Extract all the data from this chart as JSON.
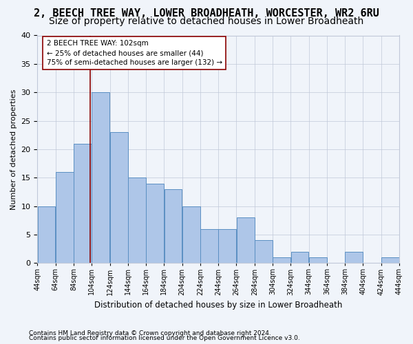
{
  "title": "2, BEECH TREE WAY, LOWER BROADHEATH, WORCESTER, WR2 6RU",
  "subtitle": "Size of property relative to detached houses in Lower Broadheath",
  "xlabel": "Distribution of detached houses by size in Lower Broadheath",
  "ylabel": "Number of detached properties",
  "footnote1": "Contains HM Land Registry data © Crown copyright and database right 2024.",
  "footnote2": "Contains public sector information licensed under the Open Government Licence v3.0.",
  "bar_values": [
    10,
    16,
    21,
    30,
    23,
    15,
    14,
    13,
    10,
    6,
    6,
    8,
    4,
    1,
    2,
    1,
    0,
    2,
    0,
    1
  ],
  "bin_labels": [
    "44sqm",
    "64sqm",
    "84sqm",
    "104sqm",
    "124sqm",
    "144sqm",
    "164sqm",
    "184sqm",
    "204sqm",
    "224sqm",
    "244sqm",
    "264sqm",
    "284sqm",
    "304sqm",
    "324sqm",
    "344sqm",
    "364sqm",
    "384sqm",
    "404sqm",
    "424sqm",
    "444sqm"
  ],
  "bin_edges": [
    44,
    64,
    84,
    104,
    124,
    144,
    164,
    184,
    204,
    224,
    244,
    264,
    284,
    304,
    324,
    344,
    364,
    384,
    404,
    424,
    444
  ],
  "bar_color": "#aec6e8",
  "bar_edge_color": "#5a8fc2",
  "property_sqm": 102,
  "property_line_color": "#8b0000",
  "annotation_line1": "2 BEECH TREE WAY: 102sqm",
  "annotation_line2": "← 25% of detached houses are smaller (44)",
  "annotation_line3": "75% of semi-detached houses are larger (132) →",
  "annotation_box_color": "#ffffff",
  "annotation_box_edge": "#8b0000",
  "ylim": [
    0,
    40
  ],
  "yticks": [
    0,
    5,
    10,
    15,
    20,
    25,
    30,
    35,
    40
  ],
  "bg_color": "#f0f4fa",
  "plot_bg_color": "#f0f4fa",
  "grid_color": "#c0c8d8",
  "title_fontsize": 11,
  "subtitle_fontsize": 10
}
